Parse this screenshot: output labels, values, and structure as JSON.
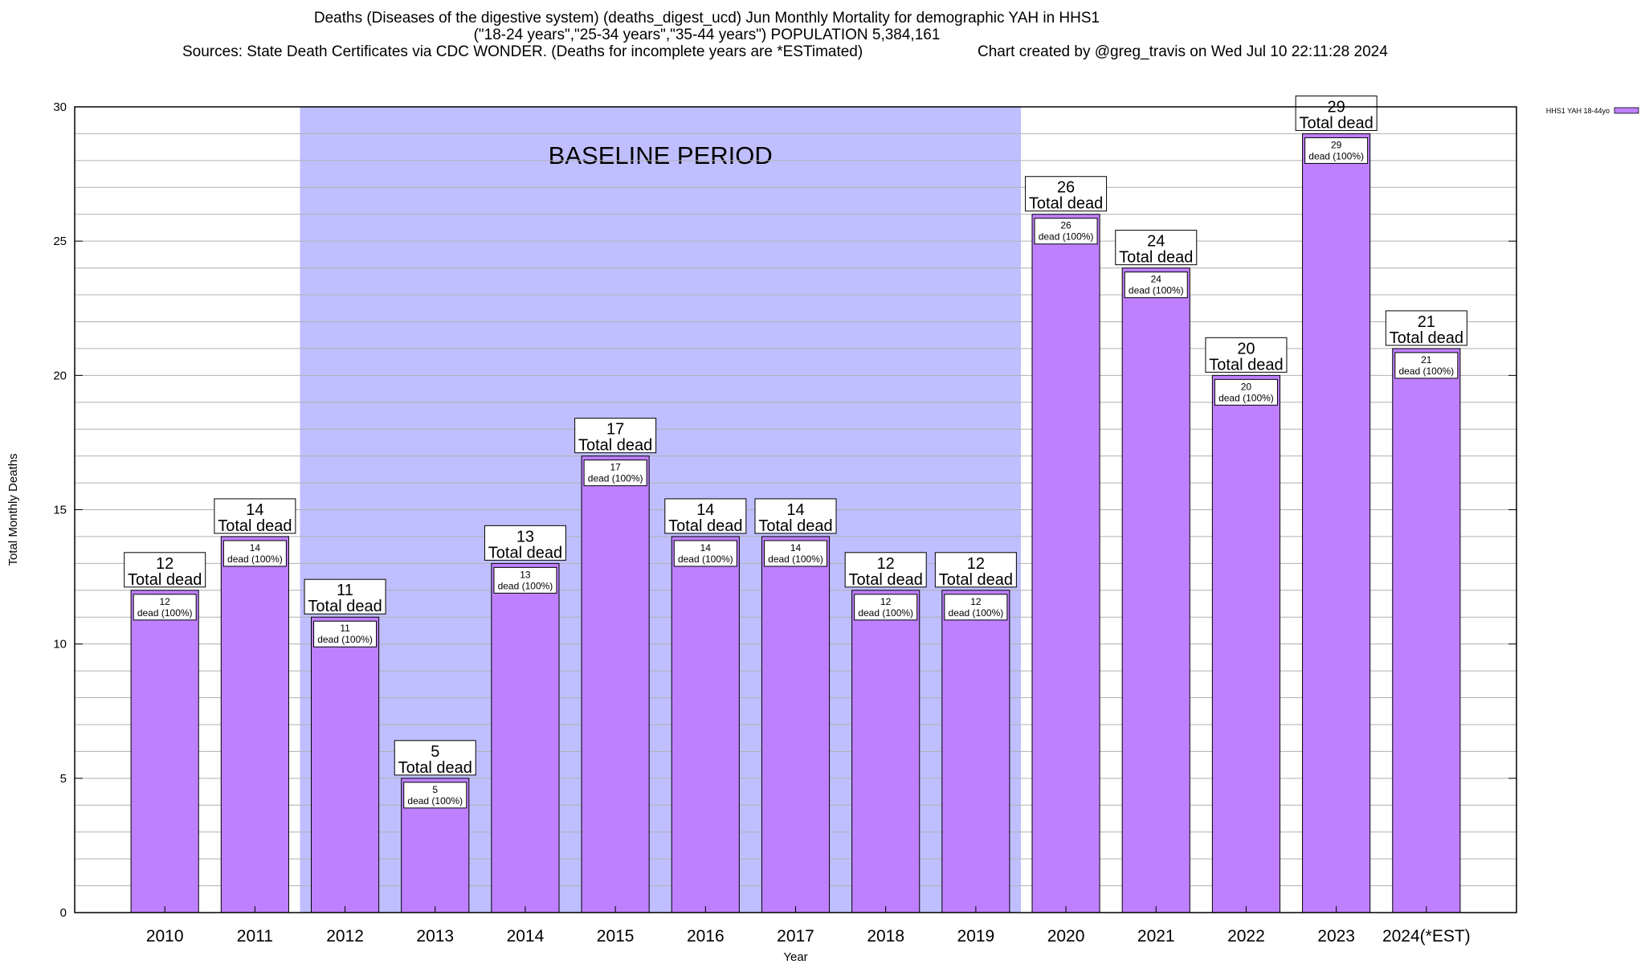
{
  "title": {
    "line1": "Deaths (Diseases of the digestive system) (deaths_digest_ucd) Jun Monthly Mortality for demographic YAH in HHS1",
    "line2": "(\"18-24 years\",\"25-34 years\",\"35-44 years\") POPULATION 5,384,161",
    "line3": "Sources: State Death Certificates via CDC WONDER. (Deaths for incomplete years are *ESTimated)",
    "credit": "Chart created by @greg_travis on Wed Jul 10 22:11:28 2024"
  },
  "colors": {
    "bar": "#bf80ff",
    "baseline_band": "#bfbfff",
    "grid": "#b0b0b0"
  },
  "chart_data": {
    "type": "bar",
    "xlabel": "Year",
    "ylabel": "Total Monthly Deaths",
    "ylim": [
      0,
      30
    ],
    "yticks": [
      0,
      5,
      10,
      15,
      20,
      25,
      30
    ],
    "grid": true,
    "legend": {
      "position": "top-right",
      "entries": [
        "HHS1 YAH 18-44yo"
      ]
    },
    "categories": [
      "2010",
      "2011",
      "2012",
      "2013",
      "2014",
      "2015",
      "2016",
      "2017",
      "2018",
      "2019",
      "2020",
      "2021",
      "2022",
      "2023",
      "2024(*EST)"
    ],
    "series": [
      {
        "name": "HHS1 YAH 18-44yo",
        "values": [
          12,
          14,
          11,
          5,
          13,
          17,
          14,
          14,
          12,
          12,
          26,
          24,
          20,
          29,
          21
        ]
      }
    ],
    "total_label_suffix": "Total dead",
    "inner_label_suffix": "dead (100%)",
    "baseline_band": {
      "label": "BASELINE PERIOD",
      "from": "2012",
      "to": "2019"
    }
  }
}
